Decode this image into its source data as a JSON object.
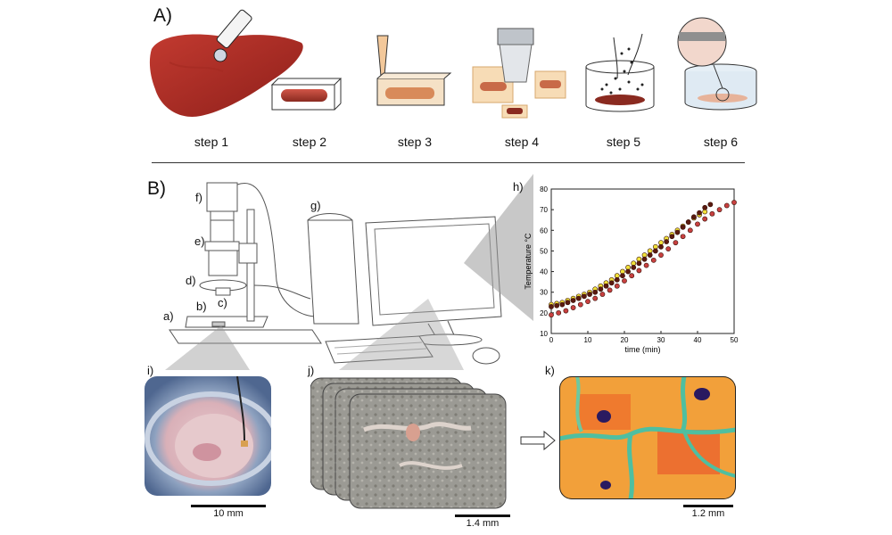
{
  "panel_a": {
    "label": "A)",
    "steps": [
      "step 1",
      "step 2",
      "step 3",
      "step 4",
      "step 5",
      "step 6"
    ]
  },
  "panel_b": {
    "label": "B)",
    "sublabels": {
      "a": "a)",
      "b": "b)",
      "c": "c)",
      "d": "d)",
      "e": "e)",
      "f": "f)",
      "g": "g)",
      "h": "h)",
      "i": "i)",
      "j": "j)",
      "k": "k)"
    },
    "scalebars": {
      "i": "10 mm",
      "j": "1.4 mm",
      "k": "1.2 mm"
    }
  },
  "chart_data": {
    "type": "scatter",
    "xlabel": "time (min)",
    "ylabel": "Temperature °C",
    "xlim": [
      0,
      50
    ],
    "ylim": [
      10,
      80
    ],
    "xticks": [
      0,
      10,
      20,
      30,
      40,
      50
    ],
    "yticks": [
      10,
      20,
      30,
      40,
      50,
      60,
      70,
      80
    ],
    "series": [
      {
        "color": "#f2e23a",
        "x": [
          0,
          1.5,
          3,
          4.5,
          6,
          7.5,
          9,
          10.5,
          12,
          13.5,
          15,
          16.5,
          18,
          19.5,
          21,
          22.5,
          24,
          25.5,
          27,
          28.5,
          30,
          31.5,
          33,
          34.5,
          36,
          37.5,
          39,
          40.5,
          42
        ],
        "y": [
          24,
          24.5,
          25,
          26,
          27,
          28,
          29,
          30,
          31.5,
          33,
          34.5,
          36,
          38,
          40,
          42,
          44,
          46,
          48,
          50,
          52,
          54,
          56,
          58,
          60,
          62,
          64,
          66,
          67.5,
          69
        ]
      },
      {
        "color": "#5a1a10",
        "x": [
          0,
          1.5,
          3,
          4.5,
          6,
          7.5,
          9,
          10.5,
          12,
          13.5,
          15,
          16.5,
          18,
          19.5,
          21,
          22.5,
          24,
          25.5,
          27,
          28.5,
          30,
          31.5,
          33,
          34.5,
          36,
          37.5,
          39,
          40.5,
          42,
          43.5
        ],
        "y": [
          23,
          23.5,
          24,
          25,
          26,
          27,
          28,
          29,
          30,
          31.5,
          33,
          34.5,
          36,
          38,
          40,
          42,
          44,
          46,
          48,
          50,
          52,
          54.5,
          57,
          59,
          61.5,
          64,
          66.5,
          68.5,
          71,
          72.5
        ]
      },
      {
        "color": "#c84040",
        "x": [
          0,
          2,
          4,
          6,
          8,
          10,
          12,
          14,
          16,
          18,
          20,
          22,
          24,
          26,
          28,
          30,
          32,
          34,
          36,
          38,
          40,
          42,
          44,
          46,
          48,
          50
        ],
        "y": [
          19,
          20,
          21,
          22.5,
          24,
          25.5,
          27,
          29,
          31,
          33,
          35.5,
          38,
          40.5,
          43,
          45.5,
          48,
          51,
          54,
          57,
          60,
          63,
          65.5,
          68,
          70,
          72,
          73.5
        ]
      }
    ]
  }
}
